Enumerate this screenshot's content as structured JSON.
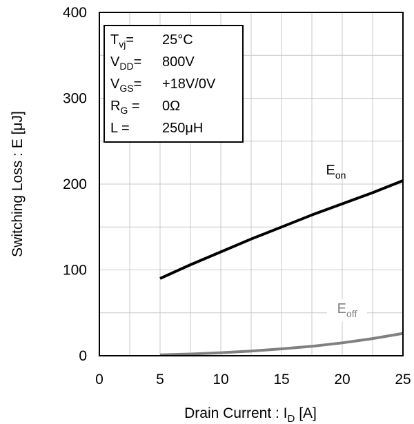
{
  "chart_data": {
    "type": "line",
    "title": "",
    "xlabel": {
      "main": "Drain Current : I",
      "sub": "D",
      "unit": " [A]"
    },
    "ylabel": "Switching Loss : E [μJ]",
    "xlim": [
      0,
      25
    ],
    "ylim": [
      0,
      400
    ],
    "xticks": [
      0,
      5,
      10,
      15,
      20,
      25
    ],
    "xtick_labels": [
      "0",
      "5",
      "10",
      "15",
      "20",
      "25"
    ],
    "yticks": [
      0,
      100,
      200,
      300,
      400
    ],
    "ytick_labels": [
      "0",
      "100",
      "200",
      "300",
      "400"
    ],
    "grid": true,
    "x_minor_step": 2.5,
    "y_minor_step": 50,
    "series": [
      {
        "name": "E_on",
        "label_main": "E",
        "label_sub": "on",
        "color": "#000000",
        "x": [
          5,
          7.5,
          10,
          12.5,
          15,
          17.5,
          20,
          22.5,
          25
        ],
        "y": [
          90,
          106,
          121,
          136,
          150,
          164,
          177,
          190,
          204
        ]
      },
      {
        "name": "E_off",
        "label_main": "E",
        "label_sub": "off",
        "color": "#808080",
        "x": [
          5,
          7.5,
          10,
          12.5,
          15,
          17.5,
          20,
          22.5,
          25
        ],
        "y": [
          1,
          2,
          3.5,
          5.5,
          8,
          11,
          15,
          20,
          26
        ]
      }
    ],
    "conditions": [
      {
        "main": "T",
        "sub": "vj",
        "eq": "=",
        "value": "25°C"
      },
      {
        "main": "V",
        "sub": "DD",
        "eq": "=",
        "value": "800V"
      },
      {
        "main": "V",
        "sub": "GS",
        "eq": "=",
        "value": "+18V/0V"
      },
      {
        "main": "R",
        "sub": "G",
        "eq": " =",
        "value": "0Ω"
      },
      {
        "main": "L =",
        "sub": "",
        "eq": "",
        "value": "250μH"
      }
    ]
  }
}
